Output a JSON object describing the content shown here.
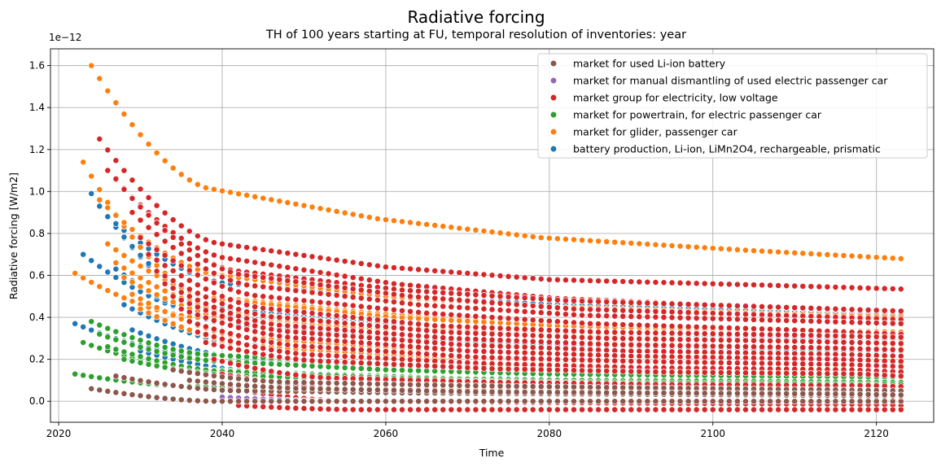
{
  "chart_data": {
    "type": "scatter",
    "title": "Radiative forcing",
    "subtitle": "TH of 100 years starting at FU, temporal resolution of inventories: year",
    "xlabel": "Time",
    "ylabel": "Radiative forcing [W/m2]",
    "offset_text": "1e−12",
    "xlim": [
      2019,
      2127
    ],
    "ylim": [
      -0.1,
      1.68
    ],
    "xticks": [
      2020,
      2040,
      2060,
      2080,
      2100,
      2120
    ],
    "xtick_labels": [
      "2020",
      "2040",
      "2060",
      "2080",
      "2100",
      "2120"
    ],
    "yticks": [
      0.0,
      0.2,
      0.4,
      0.6,
      0.8,
      1.0,
      1.2,
      1.4,
      1.6
    ],
    "ytick_labels": [
      "0.0",
      "0.2",
      "0.4",
      "0.6",
      "0.8",
      "1.0",
      "1.2",
      "1.4",
      "1.6"
    ],
    "grid": true,
    "legend_position": "top-right",
    "x_range_years": [
      2022,
      2123
    ],
    "series": [
      {
        "name": "market for used Li-ion battery",
        "color": "#8c564b",
        "curves": [
          {
            "start": 2024,
            "values": [
              0.06,
              0.0,
              0.0,
              0.0,
              0.0,
              0.0
            ]
          },
          {
            "start": 2027,
            "values": [
              0.12,
              0.05,
              0.04,
              0.035,
              0.03,
              0.025
            ]
          },
          {
            "start": 2034,
            "values": [
              0.15,
              0.09,
              0.075,
              0.065,
              0.055,
              0.05
            ]
          },
          {
            "start": 2036,
            "values": [
              0.1,
              0.06,
              0.045,
              0.04,
              0.035,
              0.03
            ]
          }
        ]
      },
      {
        "name": "market for manual dismantling of used electric passenger car",
        "color": "#9467bd",
        "curves": [
          {
            "start": 2040,
            "values": [
              0.02,
              0.0,
              0.0,
              0.0,
              0.0,
              0.0
            ]
          }
        ]
      },
      {
        "name": "market group for electricity, low voltage",
        "color": "#d62728",
        "curves": [
          {
            "start": 2025,
            "values": [
              1.25,
              0.75,
              0.64,
              0.58,
              0.555,
              0.535
            ]
          },
          {
            "start": 2026,
            "values": [
              1.1,
              0.68,
              0.56,
              0.49,
              0.45,
              0.425
            ]
          },
          {
            "start": 2027,
            "values": [
              1.06,
              0.62,
              0.53,
              0.48,
              0.45,
              0.43
            ]
          },
          {
            "start": 2028,
            "values": [
              1.01,
              0.6,
              0.5,
              0.44,
              0.41,
              0.39
            ]
          },
          {
            "start": 2029,
            "values": [
              0.9,
              0.55,
              0.46,
              0.41,
              0.385,
              0.37
            ]
          },
          {
            "start": 2030,
            "values": [
              0.78,
              0.5,
              0.42,
              0.37,
              0.34,
              0.32
            ]
          },
          {
            "start": 2031,
            "values": [
              0.7,
              0.44,
              0.36,
              0.33,
              0.315,
              0.305
            ]
          },
          {
            "start": 2032,
            "values": [
              0.62,
              0.4,
              0.33,
              0.3,
              0.285,
              0.275
            ]
          },
          {
            "start": 2033,
            "values": [
              0.56,
              0.36,
              0.3,
              0.27,
              0.255,
              0.245
            ]
          },
          {
            "start": 2034,
            "values": [
              0.5,
              0.33,
              0.27,
              0.24,
              0.225,
              0.215
            ]
          },
          {
            "start": 2035,
            "values": [
              0.44,
              0.3,
              0.24,
              0.215,
              0.2,
              0.19
            ]
          },
          {
            "start": 2036,
            "values": [
              0.38,
              0.26,
              0.21,
              0.19,
              0.175,
              0.165
            ]
          },
          {
            "start": 2037,
            "values": [
              0.33,
              0.22,
              0.18,
              0.16,
              0.15,
              0.14
            ]
          },
          {
            "start": 2038,
            "values": [
              0.28,
              0.19,
              0.155,
              0.14,
              0.13,
              0.12
            ]
          },
          {
            "start": 2039,
            "values": [
              0.2,
              0.11,
              0.09,
              0.08,
              0.075,
              0.07
            ]
          },
          {
            "start": 2040,
            "values": [
              0.13,
              0.06,
              0.05,
              0.045,
              0.04,
              0.035
            ]
          },
          {
            "start": 2041,
            "values": [
              0.06,
              0.0,
              -0.005,
              -0.01,
              -0.015,
              -0.02
            ]
          },
          {
            "start": 2042,
            "values": [
              -0.02,
              -0.04,
              -0.04,
              -0.04,
              -0.04,
              -0.04
            ]
          }
        ]
      },
      {
        "name": "market for powertrain, for electric passenger car",
        "color": "#2ca02c",
        "curves": [
          {
            "start": 2022,
            "values": [
              0.13,
              0.07,
              0.06,
              0.05,
              0.045,
              0.04
            ]
          },
          {
            "start": 2023,
            "values": [
              0.28,
              0.15,
              0.12,
              0.1,
              0.09,
              0.085
            ]
          },
          {
            "start": 2024,
            "values": [
              0.38,
              0.22,
              0.18,
              0.16,
              0.15,
              0.145
            ]
          },
          {
            "start": 2025,
            "values": [
              0.32,
              0.19,
              0.15,
              0.13,
              0.12,
              0.115
            ]
          },
          {
            "start": 2026,
            "values": [
              0.26,
              0.14,
              0.11,
              0.1,
              0.095,
              0.09
            ]
          },
          {
            "start": 2028,
            "values": [
              0.2,
              0.12,
              0.1,
              0.09,
              0.085,
              0.08
            ]
          }
        ]
      },
      {
        "name": "market for glider, passenger car",
        "color": "#ff7f0e",
        "curves": [
          {
            "start": 2022,
            "values": [
              0.61,
              0.4,
              0.35,
              0.33,
              0.32,
              0.31
            ]
          },
          {
            "start": 2023,
            "values": [
              1.14,
              0.5,
              0.42,
              0.37,
              0.34,
              0.32
            ]
          },
          {
            "start": 2024,
            "values": [
              1.6,
              1.01,
              0.87,
              0.78,
              0.72,
              0.68
            ]
          },
          {
            "start": 2025,
            "values": [
              0.96,
              0.6,
              0.5,
              0.45,
              0.42,
              0.4
            ]
          },
          {
            "start": 2026,
            "values": [
              0.75,
              0.48,
              0.4,
              0.36,
              0.34,
              0.33
            ]
          },
          {
            "start": 2027,
            "values": [
              0.66,
              0.42,
              0.35,
              0.31,
              0.29,
              0.28
            ]
          },
          {
            "start": 2028,
            "values": [
              0.59,
              0.38,
              0.31,
              0.28,
              0.26,
              0.25
            ]
          },
          {
            "start": 2029,
            "values": [
              0.51,
              0.3,
              0.25,
              0.22,
              0.2,
              0.19
            ]
          },
          {
            "start": 2030,
            "values": [
              0.44,
              0.26,
              0.21,
              0.19,
              0.175,
              0.165
            ]
          }
        ]
      },
      {
        "name": "battery production, Li-ion, LiMn2O4, rechargeable, prismatic",
        "color": "#1f77b4",
        "curves": [
          {
            "start": 2022,
            "values": [
              0.37,
              0.22,
              0.18,
              0.16,
              0.15,
              0.14
            ]
          },
          {
            "start": 2023,
            "values": [
              0.7,
              0.42,
              0.35,
              0.31,
              0.29,
              0.28
            ]
          },
          {
            "start": 2024,
            "values": [
              0.99,
              0.45,
              0.37,
              0.33,
              0.31,
              0.3
            ]
          },
          {
            "start": 2025,
            "values": [
              0.93,
              0.44,
              0.37,
              0.33,
              0.3,
              0.29
            ]
          },
          {
            "start": 2026,
            "values": [
              0.88,
              0.56,
              0.5,
              0.46,
              0.43,
              0.41
            ]
          },
          {
            "start": 2027,
            "values": [
              0.63,
              0.36,
              0.3,
              0.27,
              0.25,
              0.24
            ]
          },
          {
            "start": 2028,
            "values": [
              0.46,
              0.27,
              0.22,
              0.2,
              0.185,
              0.175
            ]
          },
          {
            "start": 2029,
            "values": [
              0.34,
              0.2,
              0.165,
              0.15,
              0.14,
              0.13
            ]
          },
          {
            "start": 2030,
            "values": [
              0.24,
              0.14,
              0.115,
              0.1,
              0.095,
              0.09
            ]
          }
        ]
      }
    ]
  }
}
